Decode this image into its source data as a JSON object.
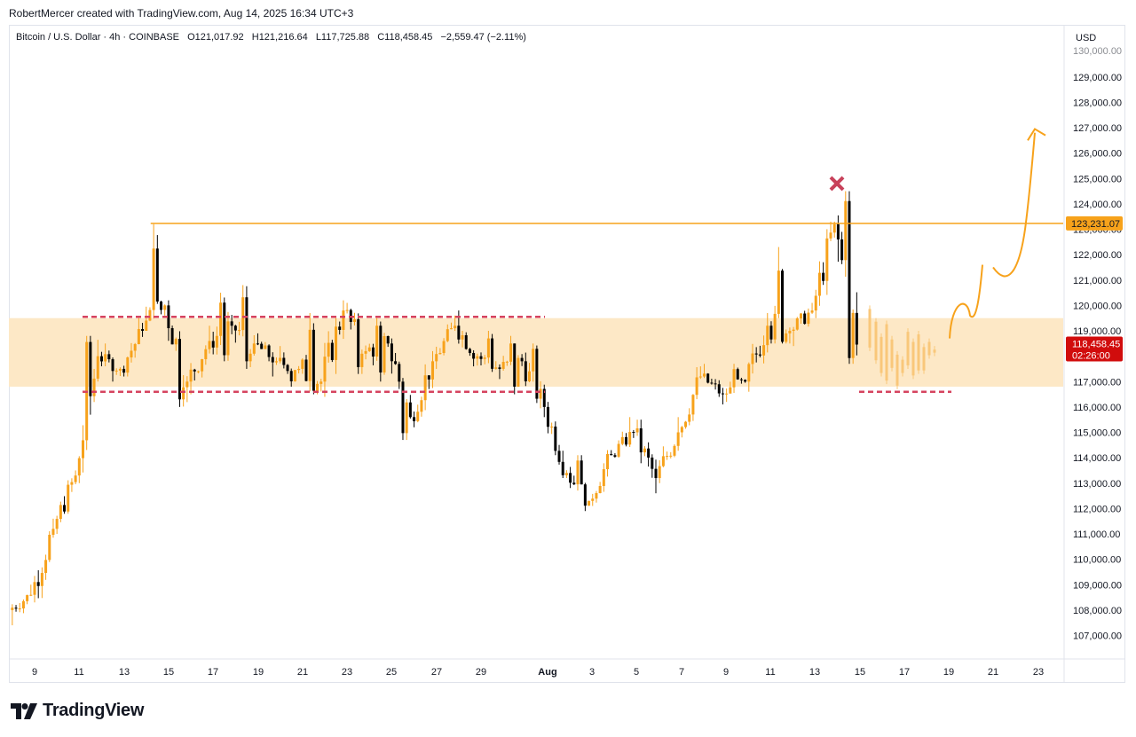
{
  "header": {
    "credit": "RobertMercer created with TradingView.com, Aug 14, 2025 16:34 UTC+3"
  },
  "legend": {
    "symbol": "Bitcoin / U.S. Dollar · 4h · COINBASE",
    "open": "O121,017.92",
    "high": "H121,216.64",
    "low": "L117,725.88",
    "close": "C118,458.45",
    "change": "−2,559.47 (−2.11%)"
  },
  "axis": {
    "currency": "USD",
    "y_ticks": [
      "107,000.00",
      "108,000.00",
      "109,000.00",
      "110,000.00",
      "111,000.00",
      "112,000.00",
      "113,000.00",
      "114,000.00",
      "115,000.00",
      "116,000.00",
      "117,000.00",
      "118,000.00",
      "119,000.00",
      "120,000.00",
      "121,000.00",
      "122,000.00",
      "123,000.00",
      "124,000.00",
      "125,000.00",
      "126,000.00",
      "127,000.00",
      "128,000.00",
      "129,000.00"
    ],
    "x_ticks": [
      "9",
      "11",
      "13",
      "15",
      "17",
      "19",
      "21",
      "23",
      "25",
      "27",
      "29",
      "Aug",
      "3",
      "5",
      "7",
      "9",
      "11",
      "13",
      "15",
      "17",
      "19",
      "21",
      "23"
    ]
  },
  "labels": {
    "resistance_price": "123,231.07",
    "last_price": "118,458.45",
    "countdown": "02:26:00"
  },
  "brand": {
    "name": "TradingView"
  },
  "colors": {
    "up": "#f7a21b",
    "down": "#000000",
    "zone": "#fde8c6",
    "dashed": "#d6435f",
    "resistance": "#f7a21b",
    "last_price_bg": "#d10c0c",
    "cross": "#c8415a"
  },
  "chart_data": {
    "type": "candlestick",
    "symbol": "Bitcoin / U.S. Dollar",
    "interval": "4h",
    "ylim": [
      106500,
      130000
    ],
    "x_range_days": [
      "2025-07-08",
      "2025-08-24"
    ],
    "candles_daily_approx": [
      {
        "date": "2025-07-08",
        "o": 108000,
        "h": 109000,
        "l": 107400,
        "c": 108600
      },
      {
        "date": "2025-07-09",
        "o": 108600,
        "h": 111600,
        "l": 108300,
        "c": 111200
      },
      {
        "date": "2025-07-10",
        "o": 111200,
        "h": 113500,
        "l": 111000,
        "c": 113300
      },
      {
        "date": "2025-07-11",
        "o": 113300,
        "h": 118800,
        "l": 113000,
        "c": 118000
      },
      {
        "date": "2025-07-12",
        "o": 118000,
        "h": 118500,
        "l": 117000,
        "c": 117500
      },
      {
        "date": "2025-07-13",
        "o": 117500,
        "h": 119500,
        "l": 117200,
        "c": 119000
      },
      {
        "date": "2025-07-14",
        "o": 119000,
        "h": 123200,
        "l": 119000,
        "c": 120000
      },
      {
        "date": "2025-07-15",
        "o": 120000,
        "h": 120200,
        "l": 116000,
        "c": 117000
      },
      {
        "date": "2025-07-16",
        "o": 117000,
        "h": 119200,
        "l": 116500,
        "c": 118600
      },
      {
        "date": "2025-07-17",
        "o": 118600,
        "h": 120500,
        "l": 117800,
        "c": 119200
      },
      {
        "date": "2025-07-18",
        "o": 119200,
        "h": 120800,
        "l": 117500,
        "c": 118500
      },
      {
        "date": "2025-07-19",
        "o": 118500,
        "h": 118900,
        "l": 117200,
        "c": 117800
      },
      {
        "date": "2025-07-20",
        "o": 117800,
        "h": 118400,
        "l": 116800,
        "c": 117500
      },
      {
        "date": "2025-07-21",
        "o": 117500,
        "h": 119700,
        "l": 116500,
        "c": 117000
      },
      {
        "date": "2025-07-22",
        "o": 117000,
        "h": 120200,
        "l": 116400,
        "c": 119800
      },
      {
        "date": "2025-07-23",
        "o": 119800,
        "h": 120100,
        "l": 117300,
        "c": 118200
      },
      {
        "date": "2025-07-24",
        "o": 118200,
        "h": 119500,
        "l": 117000,
        "c": 118500
      },
      {
        "date": "2025-07-25",
        "o": 118500,
        "h": 118700,
        "l": 114700,
        "c": 115600
      },
      {
        "date": "2025-07-26",
        "o": 115600,
        "h": 118200,
        "l": 115200,
        "c": 117800
      },
      {
        "date": "2025-07-27",
        "o": 117800,
        "h": 119600,
        "l": 117500,
        "c": 119200
      },
      {
        "date": "2025-07-28",
        "o": 119200,
        "h": 119800,
        "l": 117600,
        "c": 118000
      },
      {
        "date": "2025-07-29",
        "o": 118000,
        "h": 119000,
        "l": 117100,
        "c": 117500
      },
      {
        "date": "2025-07-30",
        "o": 117500,
        "h": 118800,
        "l": 116500,
        "c": 117800
      },
      {
        "date": "2025-07-31",
        "o": 117800,
        "h": 118500,
        "l": 115600,
        "c": 116000
      },
      {
        "date": "2025-08-01",
        "o": 116000,
        "h": 116200,
        "l": 113200,
        "c": 113400
      },
      {
        "date": "2025-08-02",
        "o": 113400,
        "h": 114100,
        "l": 111900,
        "c": 112300
      },
      {
        "date": "2025-08-03",
        "o": 112300,
        "h": 114300,
        "l": 112100,
        "c": 114100
      },
      {
        "date": "2025-08-04",
        "o": 114100,
        "h": 115600,
        "l": 114000,
        "c": 115000
      },
      {
        "date": "2025-08-05",
        "o": 115000,
        "h": 115500,
        "l": 112600,
        "c": 113200
      },
      {
        "date": "2025-08-06",
        "o": 113200,
        "h": 115600,
        "l": 113000,
        "c": 115000
      },
      {
        "date": "2025-08-07",
        "o": 115000,
        "h": 117600,
        "l": 114800,
        "c": 117200
      },
      {
        "date": "2025-08-08",
        "o": 117200,
        "h": 117700,
        "l": 116100,
        "c": 116500
      },
      {
        "date": "2025-08-09",
        "o": 116500,
        "h": 117700,
        "l": 116200,
        "c": 117000
      },
      {
        "date": "2025-08-10",
        "o": 117000,
        "h": 119700,
        "l": 116600,
        "c": 119200
      },
      {
        "date": "2025-08-11",
        "o": 119200,
        "h": 122300,
        "l": 118500,
        "c": 119000
      },
      {
        "date": "2025-08-12",
        "o": 119000,
        "h": 120100,
        "l": 118400,
        "c": 119800
      },
      {
        "date": "2025-08-13",
        "o": 119800,
        "h": 123300,
        "l": 119500,
        "c": 123200
      },
      {
        "date": "2025-08-14",
        "o": 123200,
        "h": 124500,
        "l": 117700,
        "c": 118458.45
      }
    ],
    "resistance_level": 123231.07,
    "range_zone": [
      116800,
      119500
    ],
    "range_top_dashed": 119550,
    "range_bottom_dashed": 116600,
    "last_price": 118458.45,
    "projection_target": 126900
  }
}
